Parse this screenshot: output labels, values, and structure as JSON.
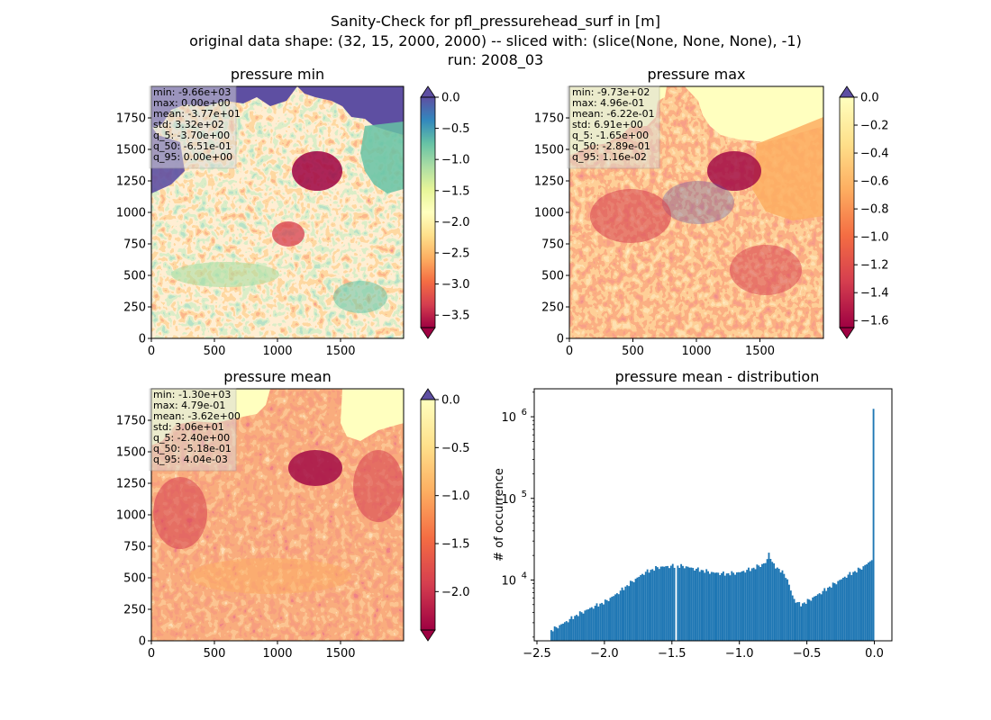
{
  "figure": {
    "title_lines": [
      "Sanity-Check for pfl_pressurehead_surf in [m]",
      "original data shape: (32, 15, 2000, 2000) -- sliced with: (slice(None, None, None), -1)",
      "run: 2008_03"
    ]
  },
  "colors": {
    "spectral": [
      "#9e0142",
      "#d53e4f",
      "#f46d43",
      "#fdae61",
      "#fee08b",
      "#ffffbf",
      "#e6f598",
      "#abdda4",
      "#66c2a5",
      "#3288bd",
      "#5e4fa2"
    ],
    "hist_bar": "#1f77b4",
    "stat_box_bg": "#d9d9d9"
  },
  "panels": [
    {
      "id": "min",
      "title": "pressure min",
      "image_axes": {
        "xlim": [
          0,
          2000
        ],
        "ylim": [
          0,
          2000
        ],
        "x_ticks": [
          0,
          500,
          1000,
          1500
        ],
        "y_ticks": [
          0,
          250,
          500,
          750,
          1000,
          1250,
          1500,
          1750
        ]
      },
      "stats": [
        "min: -9.66e+03",
        "max: 0.00e+00",
        "mean: -3.77e+01",
        "std: 3.32e+02",
        "q_5: -3.70e+00",
        "q_50: -6.51e-01",
        "q_95: 0.00e+00"
      ],
      "colorbar": {
        "vmin": -3.7,
        "vmax": 0.0,
        "ticks": [
          "0.0",
          "-0.5",
          "-1.0",
          "-1.5",
          "-2.0",
          "-2.5",
          "-3.0",
          "-3.5"
        ],
        "tick_values": [
          0,
          -0.5,
          -1.0,
          -1.5,
          -2.0,
          -2.5,
          -3.0,
          -3.5
        ],
        "extend_top": true,
        "extend_bottom": true,
        "colormap": "spectral"
      }
    },
    {
      "id": "max",
      "title": "pressure max",
      "image_axes": {
        "xlim": [
          0,
          2000
        ],
        "ylim": [
          0,
          2000
        ],
        "x_ticks": [
          0,
          500,
          1000,
          1500
        ],
        "y_ticks": [
          0,
          250,
          500,
          750,
          1000,
          1250,
          1500,
          1750
        ]
      },
      "stats": [
        "min: -9.73e+02",
        "max: 4.96e-01",
        "mean: -6.22e-01",
        "std: 6.91e+00",
        "q_5: -1.65e+00",
        "q_50: -2.89e-01",
        "q_95: 1.16e-02"
      ],
      "colorbar": {
        "vmin": -1.65,
        "vmax": 0.0,
        "ticks": [
          "0.0",
          "-0.2",
          "-0.4",
          "-0.6",
          "-0.8",
          "-1.0",
          "-1.2",
          "-1.4",
          "-1.6"
        ],
        "tick_values": [
          0,
          -0.2,
          -0.4,
          -0.6,
          -0.8,
          -1.0,
          -1.2,
          -1.4,
          -1.6
        ],
        "extend_top": true,
        "extend_bottom": true,
        "colormap": "spectral_half"
      }
    },
    {
      "id": "mean",
      "title": "pressure mean",
      "image_axes": {
        "xlim": [
          0,
          2000
        ],
        "ylim": [
          0,
          2000
        ],
        "x_ticks": [
          0,
          500,
          1000,
          1500
        ],
        "y_ticks": [
          0,
          250,
          500,
          750,
          1000,
          1250,
          1500,
          1750
        ]
      },
      "stats": [
        "min: -1.30e+03",
        "max: 4.79e-01",
        "mean: -3.62e+00",
        "std: 3.06e+01",
        "q_5: -2.40e+00",
        "q_50: -5.18e-01",
        "q_95: 4.04e-03"
      ],
      "colorbar": {
        "vmin": -2.4,
        "vmax": 0.0,
        "ticks": [
          "0.0",
          "-0.5",
          "-1.0",
          "-1.5",
          "-2.0"
        ],
        "tick_values": [
          0,
          -0.5,
          -1.0,
          -1.5,
          -2.0
        ],
        "extend_top": true,
        "extend_bottom": true,
        "colormap": "spectral_half"
      }
    }
  ],
  "chart_data": {
    "type": "bar",
    "title": "pressure mean - distribution",
    "xlabel": "",
    "ylabel": "# of occurrence",
    "yscale": "log",
    "xlim": [
      -2.52,
      0.13
    ],
    "ylim": [
      1800,
      2200000
    ],
    "x_ticks": [
      -2.5,
      -2.0,
      -1.5,
      -1.0,
      -0.5,
      0.0
    ],
    "x_tick_labels": [
      "−2.5",
      "−2.0",
      "−1.5",
      "−1.0",
      "−0.5",
      "0.0"
    ],
    "y_ticks": [
      10000,
      100000,
      1000000
    ],
    "y_tick_labels": [
      "10^4",
      "10^5",
      "10^6"
    ],
    "bin_range": [
      -2.4,
      0.0
    ],
    "bin_width": 0.0125,
    "series": [
      {
        "profile_x": [
          -2.4,
          -2.3,
          -2.2,
          -2.1,
          -2.0,
          -1.9,
          -1.8,
          -1.7,
          -1.6,
          -1.5,
          -1.45,
          -1.4,
          -1.3,
          -1.2,
          -1.1,
          -1.0,
          -0.9,
          -0.8,
          -0.78,
          -0.75,
          -0.7,
          -0.65,
          -0.6,
          -0.55,
          -0.5,
          -0.4,
          -0.3,
          -0.2,
          -0.1,
          -0.03,
          -0.01,
          -0.006,
          0.0
        ],
        "profile_y": [
          2400,
          3000,
          3800,
          4600,
          5400,
          7000,
          9500,
          12500,
          14500,
          15000,
          15000,
          14800,
          13500,
          12500,
          12000,
          12500,
          14000,
          16500,
          22000,
          15500,
          13500,
          11000,
          6000,
          5000,
          5500,
          7000,
          9000,
          11500,
          14000,
          17000,
          20000,
          26000,
          1250000
        ]
      }
    ],
    "gap_at": -1.465
  }
}
